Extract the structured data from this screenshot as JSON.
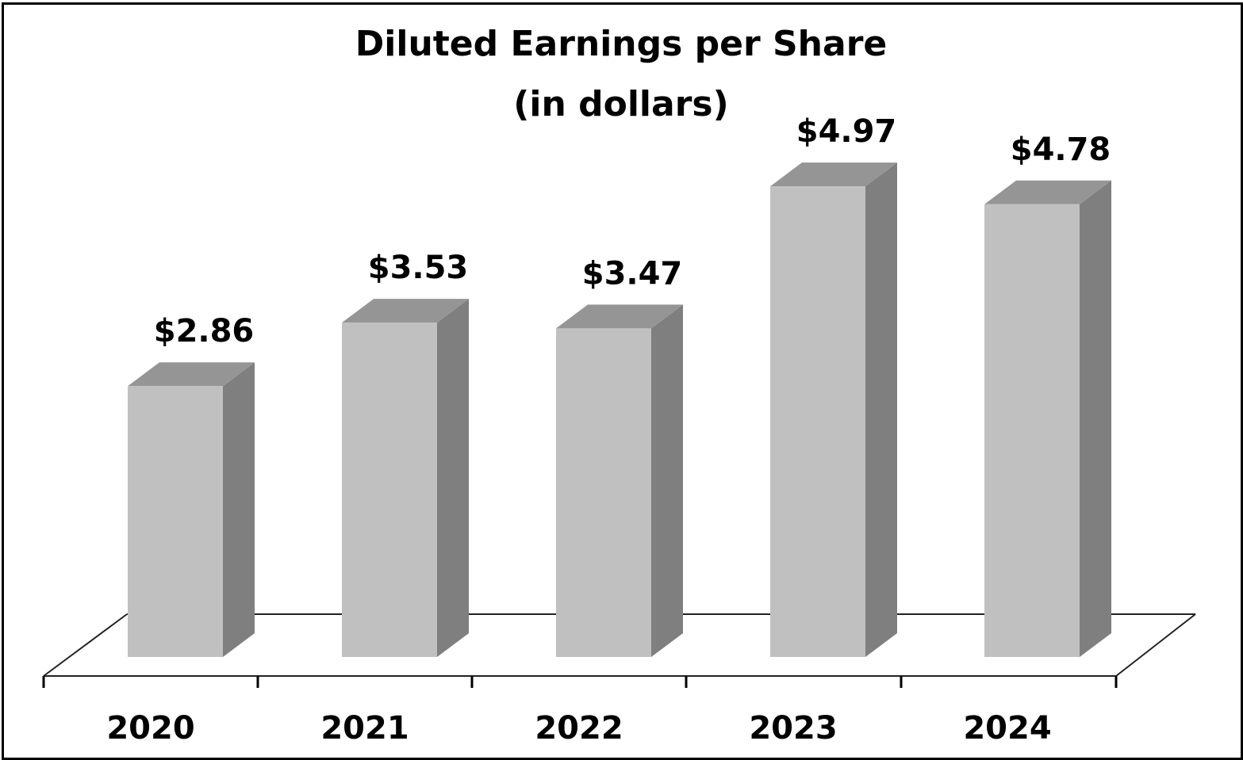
{
  "chart_data": {
    "type": "bar",
    "title": "Diluted Earnings per Share",
    "subtitle": "(in dollars)",
    "categories": [
      "2020",
      "2021",
      "2022",
      "2023",
      "2024"
    ],
    "values": [
      2.86,
      3.53,
      3.47,
      4.97,
      4.78
    ],
    "labels": [
      "$2.86",
      "$3.53",
      "$3.47",
      "$4.97",
      "$4.78"
    ],
    "xlabel": "",
    "ylabel": "",
    "grid": false,
    "legend": "none",
    "style": "3d-column",
    "colors": {
      "front": "#c0c0c0",
      "top": "#959595",
      "side": "#7f7f7f"
    }
  }
}
